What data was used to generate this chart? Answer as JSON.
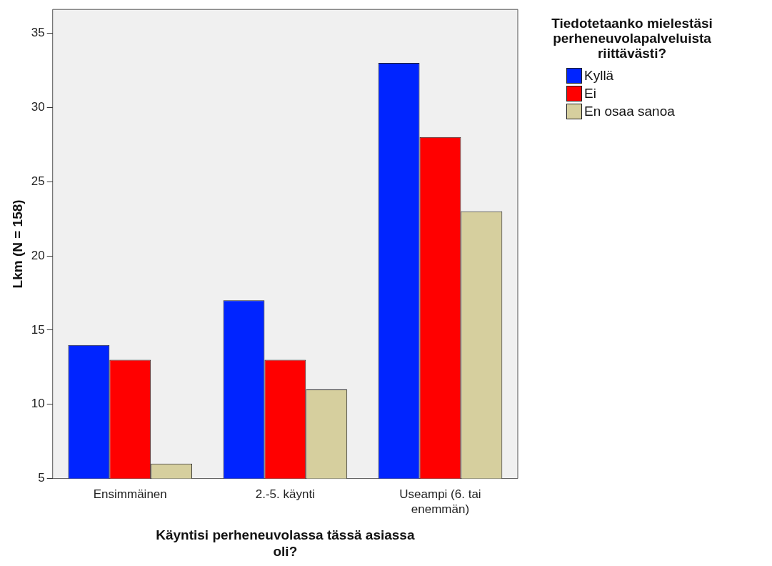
{
  "chart_data": {
    "type": "bar",
    "xlabel": "Käyntisi perheneuvolassa tässä asiassa oli?",
    "ylabel": "Lkm (N = 158)",
    "legend_title": "Tiedotetaanko mielestäsi perheneuvolapalveluista riittävästi?",
    "categories": [
      "Ensimmäinen",
      "2.-5. käynti",
      "Useampi (6. tai enemmän)"
    ],
    "series": [
      {
        "name": "Kyllä",
        "color": "#0024ff",
        "values": [
          14,
          17,
          33
        ]
      },
      {
        "name": "Ei",
        "color": "#ff0000",
        "values": [
          13,
          13,
          28
        ]
      },
      {
        "name": "En osaa sanoa",
        "color": "#d6cf9e",
        "values": [
          6,
          11,
          23
        ]
      }
    ],
    "ylim": [
      5,
      36.6
    ],
    "yticks": [
      5,
      10,
      15,
      20,
      25,
      30,
      35
    ],
    "grid": false,
    "legend": "right"
  }
}
